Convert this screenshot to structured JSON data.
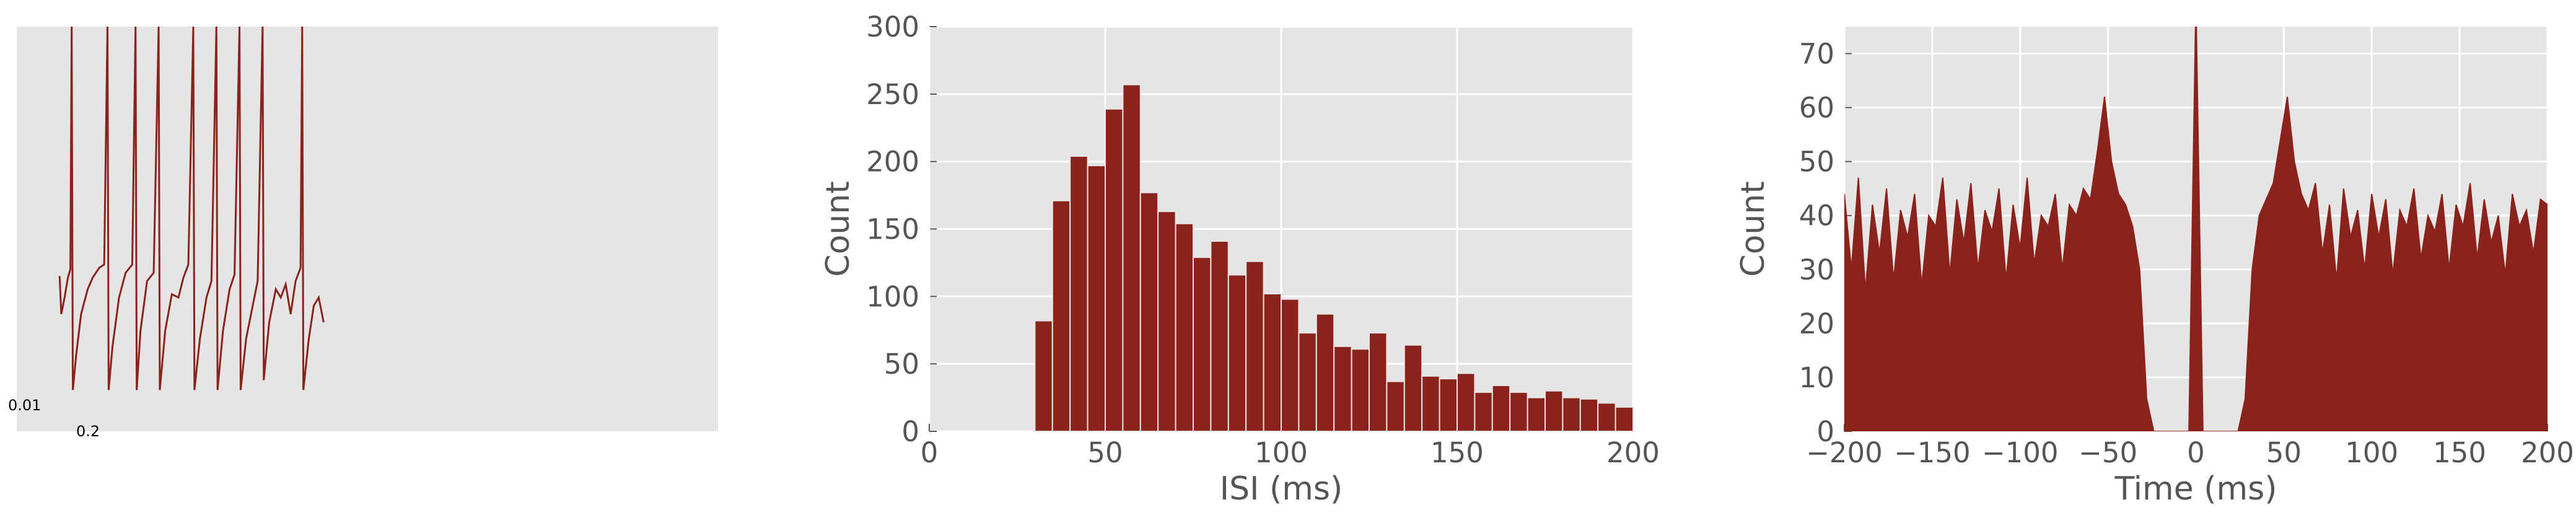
{
  "chart_data": [
    {
      "type": "line",
      "color": "#8b231d",
      "xlim": [
        0,
        425
      ],
      "ylim": [
        0,
        245
      ],
      "scalebar_labels": [
        "0.01",
        "0.2"
      ],
      "x": [
        26,
        27,
        29,
        31,
        32.5,
        33.3,
        34,
        36,
        39,
        43,
        46,
        50,
        53,
        55,
        55.7,
        58,
        62,
        66,
        70,
        72,
        72.7,
        75,
        79,
        83,
        86,
        86.7,
        90,
        94,
        98,
        101,
        104,
        107,
        107.7,
        111,
        115,
        118,
        121,
        121.7,
        125,
        129,
        132,
        135,
        135.7,
        139,
        143,
        146,
        149,
        149.7,
        153,
        157,
        160,
        163,
        166,
        169,
        172,
        173,
        173.7,
        177,
        180,
        183,
        186
      ],
      "values": [
        94,
        71,
        81,
        93,
        98,
        245,
        25,
        46,
        71,
        86,
        93,
        99,
        101,
        245,
        25,
        51,
        81,
        96,
        101,
        245,
        25,
        61,
        91,
        96,
        245,
        25,
        61,
        83,
        81,
        93,
        101,
        245,
        25,
        56,
        81,
        91,
        245,
        25,
        61,
        86,
        95,
        245,
        25,
        56,
        76,
        91,
        245,
        31,
        66,
        86,
        81,
        89,
        71,
        91,
        99,
        245,
        25,
        56,
        76,
        81,
        66
      ]
    },
    {
      "type": "histogram",
      "color": "#8b231d",
      "xlabel": "ISI (ms)",
      "ylabel": "Count",
      "bins": [
        30,
        35,
        40,
        45,
        50,
        55,
        60,
        65,
        70,
        75,
        80,
        85,
        90,
        95,
        100,
        105,
        110,
        115,
        120,
        125,
        130,
        135,
        140,
        145,
        150,
        155,
        160,
        165,
        170,
        175,
        180,
        185,
        190,
        195,
        200
      ],
      "values": [
        82,
        171,
        204,
        197,
        239,
        257,
        177,
        163,
        154,
        129,
        141,
        116,
        126,
        102,
        98,
        73,
        87,
        63,
        61,
        73,
        37,
        64,
        41,
        39,
        43,
        29,
        34,
        29,
        25,
        30,
        25,
        24,
        21,
        18
      ],
      "xlim": [
        0,
        200
      ],
      "xticks": [
        0,
        50,
        100,
        150,
        200
      ],
      "ylim": [
        0,
        300
      ],
      "yticks": [
        0,
        50,
        100,
        150,
        200,
        250,
        300
      ],
      "grid": true
    },
    {
      "type": "area",
      "color": "#8b231d",
      "xlabel": "Time (ms)",
      "ylabel": "Count",
      "x": [
        -200,
        -196,
        -192,
        -188,
        -184,
        -180,
        -176,
        -172,
        -168,
        -164,
        -160,
        -156,
        -152,
        -148,
        -144,
        -140,
        -136,
        -132,
        -128,
        -124,
        -120,
        -116,
        -112,
        -108,
        -104,
        -100,
        -96,
        -92,
        -88,
        -84,
        -80,
        -76,
        -72,
        -68,
        -64,
        -60,
        -56,
        -52,
        -48,
        -44,
        -40,
        -36,
        -32,
        -28,
        -24,
        -20,
        -16,
        -12,
        -8,
        -4,
        0,
        4,
        8,
        12,
        16,
        20,
        24,
        28,
        32,
        36,
        40,
        44,
        48,
        52,
        56,
        60,
        64,
        68,
        72,
        76,
        80,
        84,
        88,
        92,
        96,
        100,
        104,
        108,
        112,
        116,
        120,
        124,
        128,
        132,
        136,
        140,
        144,
        148,
        152,
        156,
        160,
        164,
        168,
        172,
        176,
        180,
        184,
        188,
        192,
        196,
        200
      ],
      "values": [
        44,
        30,
        47,
        26,
        42,
        33,
        45,
        28,
        41,
        36,
        44,
        27,
        40,
        38,
        47,
        29,
        43,
        35,
        46,
        30,
        41,
        37,
        45,
        28,
        42,
        34,
        47,
        31,
        40,
        38,
        44,
        30,
        42,
        40,
        45,
        43,
        52,
        62,
        50,
        44,
        42,
        38,
        30,
        6,
        0,
        0,
        0,
        0,
        0,
        0,
        80,
        0,
        0,
        0,
        0,
        0,
        0,
        6,
        30,
        40,
        43,
        46,
        54,
        62,
        50,
        44,
        41,
        46,
        33,
        42,
        28,
        45,
        36,
        41,
        30,
        44,
        36,
        43,
        29,
        41,
        38,
        45,
        32,
        40,
        37,
        44,
        30,
        42,
        38,
        46,
        32,
        43,
        35,
        40,
        29,
        44,
        38,
        41,
        33,
        43,
        42
      ],
      "xlim": [
        -200,
        200
      ],
      "xticks": [
        {
          "value": -200,
          "label": "−200"
        },
        {
          "value": -150,
          "label": "−150"
        },
        {
          "value": -100,
          "label": "−100"
        },
        {
          "value": -50,
          "label": "−50"
        },
        0,
        50,
        100,
        150,
        200
      ],
      "ylim": [
        0,
        75
      ],
      "yticks": [
        0,
        10,
        20,
        30,
        40,
        50,
        60,
        70
      ],
      "grid": true
    }
  ]
}
